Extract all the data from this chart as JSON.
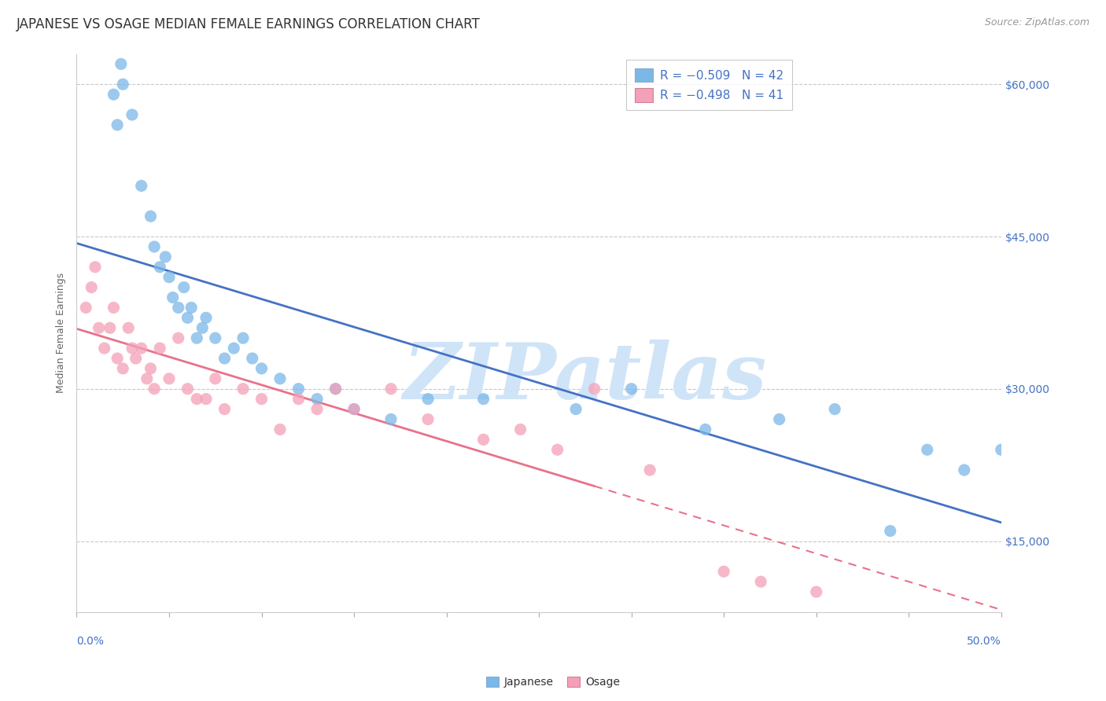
{
  "title": "JAPANESE VS OSAGE MEDIAN FEMALE EARNINGS CORRELATION CHART",
  "source_text": "Source: ZipAtlas.com",
  "ylabel": "Median Female Earnings",
  "y_ticks": [
    15000,
    30000,
    45000,
    60000
  ],
  "y_tick_labels": [
    "$15,000",
    "$30,000",
    "$45,000",
    "$60,000"
  ],
  "x_range": [
    0.0,
    50.0
  ],
  "y_range": [
    8000,
    63000
  ],
  "japanese_color": "#7BB8E8",
  "osage_color": "#F4A0B8",
  "trend_japanese_color": "#4472C4",
  "trend_osage_color": "#E8728A",
  "watermark_text": "ZIPatlas",
  "watermark_color": "#D0E4F8",
  "background_color": "#FFFFFF",
  "grid_color": "#C8C8C8",
  "japanese_x": [
    2.0,
    2.2,
    2.4,
    2.5,
    3.0,
    3.5,
    4.0,
    4.2,
    4.5,
    4.8,
    5.0,
    5.2,
    5.5,
    5.8,
    6.0,
    6.2,
    6.5,
    6.8,
    7.0,
    7.5,
    8.0,
    8.5,
    9.0,
    9.5,
    10.0,
    11.0,
    12.0,
    13.0,
    14.0,
    15.0,
    17.0,
    19.0,
    22.0,
    27.0,
    30.0,
    34.0,
    38.0,
    41.0,
    44.0,
    46.0,
    48.0,
    50.0
  ],
  "japanese_y": [
    59000,
    56000,
    62000,
    60000,
    57000,
    50000,
    47000,
    44000,
    42000,
    43000,
    41000,
    39000,
    38000,
    40000,
    37000,
    38000,
    35000,
    36000,
    37000,
    35000,
    33000,
    34000,
    35000,
    33000,
    32000,
    31000,
    30000,
    29000,
    30000,
    28000,
    27000,
    29000,
    29000,
    28000,
    30000,
    26000,
    27000,
    28000,
    16000,
    24000,
    22000,
    24000
  ],
  "osage_x": [
    0.5,
    0.8,
    1.0,
    1.2,
    1.5,
    1.8,
    2.0,
    2.2,
    2.5,
    2.8,
    3.0,
    3.2,
    3.5,
    3.8,
    4.0,
    4.2,
    4.5,
    5.0,
    5.5,
    6.0,
    6.5,
    7.0,
    7.5,
    8.0,
    9.0,
    10.0,
    11.0,
    12.0,
    13.0,
    14.0,
    15.0,
    17.0,
    19.0,
    22.0,
    24.0,
    26.0,
    28.0,
    31.0,
    35.0,
    37.0,
    40.0
  ],
  "osage_y": [
    38000,
    40000,
    42000,
    36000,
    34000,
    36000,
    38000,
    33000,
    32000,
    36000,
    34000,
    33000,
    34000,
    31000,
    32000,
    30000,
    34000,
    31000,
    35000,
    30000,
    29000,
    29000,
    31000,
    28000,
    30000,
    29000,
    26000,
    29000,
    28000,
    30000,
    28000,
    30000,
    27000,
    25000,
    26000,
    24000,
    30000,
    22000,
    12000,
    11000,
    10000
  ],
  "title_fontsize": 12,
  "axis_label_fontsize": 9,
  "tick_label_fontsize": 10,
  "legend_fontsize": 11,
  "osage_solid_end_x": 28.0
}
